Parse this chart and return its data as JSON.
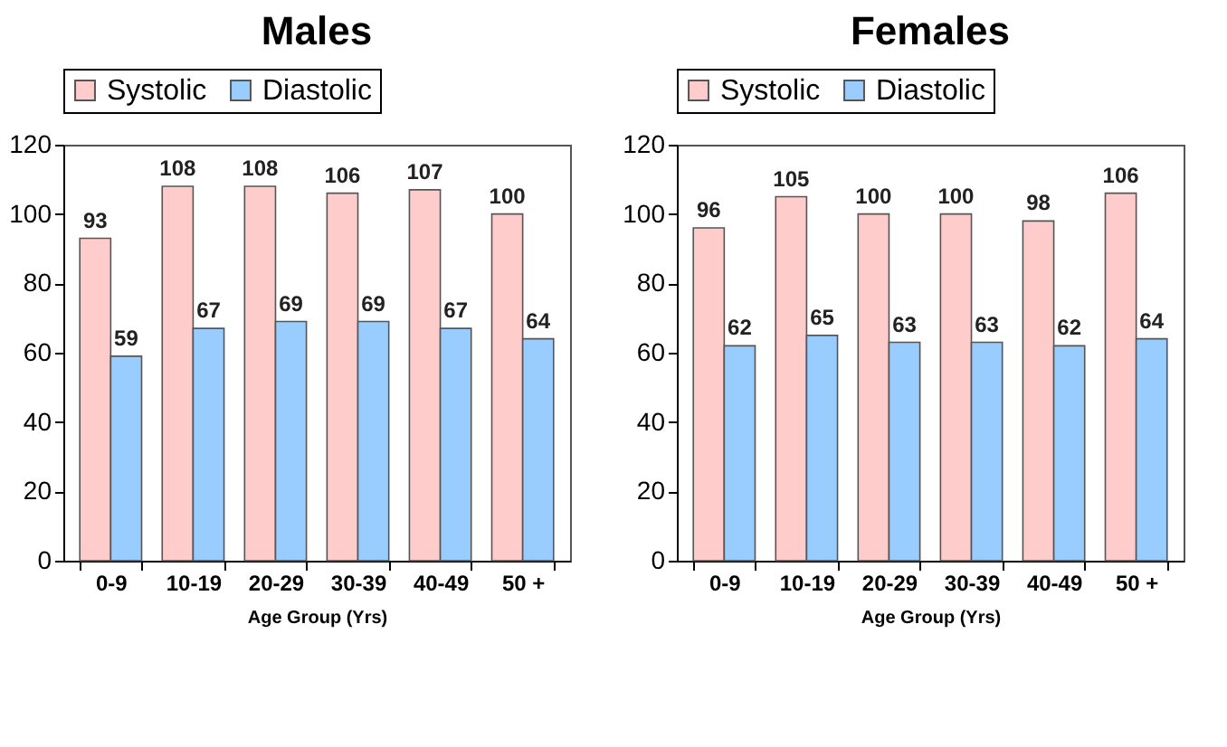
{
  "chart_data": [
    {
      "type": "bar",
      "title": "Males",
      "xlabel": "Age Group (Yrs)",
      "categories": [
        "0-9",
        "10-19",
        "20-29",
        "30-39",
        "40-49",
        "50 +"
      ],
      "series": [
        {
          "name": "Systolic",
          "color": "#ffcccc",
          "values": [
            93,
            108,
            108,
            106,
            107,
            100
          ]
        },
        {
          "name": "Diastolic",
          "color": "#99ccff",
          "values": [
            59,
            67,
            69,
            69,
            67,
            64
          ]
        }
      ],
      "ylim": [
        0,
        120
      ],
      "yticks": [
        0,
        20,
        40,
        60,
        80,
        100,
        120
      ],
      "grid": false,
      "legend": "top",
      "data_labels": true
    },
    {
      "type": "bar",
      "title": "Females",
      "xlabel": "Age Group (Yrs)",
      "categories": [
        "0-9",
        "10-19",
        "20-29",
        "30-39",
        "40-49",
        "50 +"
      ],
      "series": [
        {
          "name": "Systolic",
          "color": "#ffcccc",
          "values": [
            96,
            105,
            100,
            100,
            98,
            106
          ]
        },
        {
          "name": "Diastolic",
          "color": "#99ccff",
          "values": [
            62,
            65,
            63,
            63,
            62,
            64
          ]
        }
      ],
      "ylim": [
        0,
        120
      ],
      "yticks": [
        0,
        20,
        40,
        60,
        80,
        100,
        120
      ],
      "grid": false,
      "legend": "top",
      "data_labels": true
    }
  ]
}
